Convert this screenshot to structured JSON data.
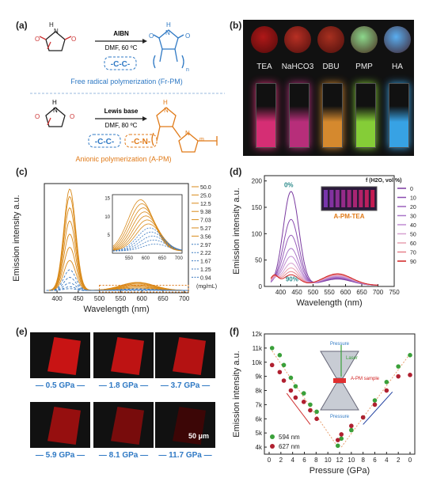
{
  "panel_labels": {
    "a": "(a)",
    "b": "(b)",
    "c": "(c)",
    "d": "(d)",
    "e": "(e)",
    "f": "(f)"
  },
  "panel_a": {
    "top_reagent": "AIBN",
    "top_conditions": "DMF, 60 ºC",
    "top_bond": "-C-C-",
    "top_caption": "Free radical polymerization (Fr-PM)",
    "bottom_reagent": "Lewis base",
    "bottom_conditions": "DMF, 80 ºC",
    "bottom_bond1": "-C-C-",
    "bottom_bond2": "-C-N-",
    "bottom_caption": "Anionic polymerization (A-PM)",
    "subscript_n": "n",
    "subscript_m": "m"
  },
  "panel_b": {
    "base_labels": [
      "TEA",
      "NaHCO3",
      "DBU",
      "PMP",
      "HA"
    ],
    "powder_colors": [
      "#b01818",
      "#b83024",
      "#a83020",
      "#8cd88c",
      "#5aaef0"
    ],
    "vial_colors": [
      "#e0307a",
      "#c03080",
      "#e09030",
      "#8cd83a",
      "#3aaaf0"
    ]
  },
  "chart_data": [
    {
      "type": "line",
      "panel": "c",
      "xlabel": "Wavelength (nm)",
      "ylabel": "Emission intensity a.u.",
      "xlim": [
        370,
        710
      ],
      "xticks": [
        400,
        450,
        500,
        550,
        600,
        650,
        700
      ],
      "legend_title": "",
      "legend_unit": "(mg/mL)",
      "series": [
        {
          "name": "50.0",
          "peak": 430,
          "height": 270,
          "color": "#d98a1a",
          "dash": false
        },
        {
          "name": "25.0",
          "peak": 430,
          "height": 250,
          "color": "#d98a1a",
          "dash": false
        },
        {
          "name": "12.5",
          "peak": 430,
          "height": 220,
          "color": "#d98a1a",
          "dash": false
        },
        {
          "name": "9.38",
          "peak": 430,
          "height": 185,
          "color": "#d98a1a",
          "dash": false
        },
        {
          "name": "7.03",
          "peak": 430,
          "height": 150,
          "color": "#d98a1a",
          "dash": false
        },
        {
          "name": "5.27",
          "peak": 430,
          "height": 115,
          "color": "#d98a1a",
          "dash": false
        },
        {
          "name": "3.56",
          "peak": 430,
          "height": 80,
          "color": "#d98a1a",
          "dash": false
        },
        {
          "name": "2.97",
          "peak": 430,
          "height": 55,
          "color": "#3c7ac0",
          "dash": true
        },
        {
          "name": "2.22",
          "peak": 430,
          "height": 35,
          "color": "#3c7ac0",
          "dash": true
        },
        {
          "name": "1.67",
          "peak": 430,
          "height": 20,
          "color": "#3c7ac0",
          "dash": true
        },
        {
          "name": "1.25",
          "peak": 430,
          "height": 10,
          "color": "#3c7ac0",
          "dash": true
        },
        {
          "name": "0.94",
          "peak": 430,
          "height": 5,
          "color": "#3c7ac0",
          "dash": true
        }
      ],
      "inset": {
        "xlim": [
          500,
          710
        ],
        "ylim": [
          0,
          16
        ],
        "xticks": [
          550,
          600,
          650,
          700
        ],
        "yticks": [
          5,
          10,
          15
        ]
      }
    },
    {
      "type": "line",
      "panel": "d",
      "xlabel": "Wavelength (nm)",
      "ylabel": "Emission intensity a.u.",
      "xlim": [
        350,
        750
      ],
      "ylim": [
        0,
        210
      ],
      "xticks": [
        400,
        450,
        500,
        550,
        600,
        650,
        700,
        750
      ],
      "yticks": [
        0,
        50,
        100,
        150,
        200
      ],
      "legend_title": "f (H2O, vol %)",
      "annotations": [
        "0%",
        "90%"
      ],
      "inset_label": "A-PM-TEA",
      "series": [
        {
          "name": "0",
          "peak": 178,
          "color": "#7a3aa0"
        },
        {
          "name": "10",
          "peak": 125,
          "color": "#8a4cb0"
        },
        {
          "name": "20",
          "peak": 95,
          "color": "#9a60bc"
        },
        {
          "name": "30",
          "peak": 70,
          "color": "#aa76c8"
        },
        {
          "name": "40",
          "peak": 55,
          "color": "#c08ad2"
        },
        {
          "name": "50",
          "peak": 42,
          "color": "#d6a0d0"
        },
        {
          "name": "60",
          "peak": 33,
          "color": "#e8a0b0"
        },
        {
          "name": "70",
          "peak": 26,
          "color": "#e6808a"
        },
        {
          "name": "90",
          "peak": 20,
          "color": "#d02020"
        }
      ]
    },
    {
      "type": "scatter",
      "panel": "f",
      "xlabel": "Pressure (GPa)",
      "ylabel": "Emission intensity a.u.",
      "ylim": [
        3500,
        12000
      ],
      "yticks": [
        4000,
        5000,
        6000,
        7000,
        8000,
        9000,
        10000,
        11000,
        12000
      ],
      "ytick_labels": [
        "4k",
        "5k",
        "6k",
        "7k",
        "8k",
        "9k",
        "10k",
        "11k",
        "12k"
      ],
      "xtick_labels": [
        "0",
        "2",
        "4",
        "6",
        "8",
        "10",
        "12",
        "10",
        "8",
        "6",
        "4",
        "2",
        "0"
      ],
      "inset_labels": {
        "pressure_top": "Pressure",
        "laser": "Laser",
        "sample": "A-PM sample",
        "pressure_bottom": "Pressure"
      },
      "series": [
        {
          "name": "594 nm",
          "color": "#3aa03a",
          "compression": [
            [
              0.5,
              11000
            ],
            [
              1.8,
              10500
            ],
            [
              2.5,
              9800
            ],
            [
              3.7,
              8900
            ],
            [
              4.5,
              8300
            ],
            [
              5.9,
              7800
            ],
            [
              7,
              7000
            ],
            [
              8.1,
              6500
            ],
            [
              11.7,
              4100
            ]
          ],
          "decompression": [
            [
              11.7,
              4600
            ],
            [
              10,
              5200
            ],
            [
              8,
              6100
            ],
            [
              6,
              7300
            ],
            [
              4,
              8600
            ],
            [
              2,
              9700
            ],
            [
              0,
              10500
            ]
          ]
        },
        {
          "name": "627 nm",
          "color": "#b02030",
          "compression": [
            [
              0.5,
              9800
            ],
            [
              1.8,
              9300
            ],
            [
              2.5,
              8700
            ],
            [
              3.7,
              8000
            ],
            [
              4.5,
              7500
            ],
            [
              5.9,
              7200
            ],
            [
              7,
              6600
            ],
            [
              8.1,
              6000
            ],
            [
              11.7,
              4500
            ]
          ],
          "decompression": [
            [
              11.7,
              4900
            ],
            [
              10,
              5500
            ],
            [
              8,
              6100
            ],
            [
              6,
              7000
            ],
            [
              4,
              8000
            ],
            [
              2,
              9000
            ],
            [
              0,
              9100
            ]
          ]
        }
      ]
    }
  ],
  "panel_e": {
    "pressures_row1": [
      "0.5 GPa",
      "1.8 GPa",
      "3.7 GPa"
    ],
    "pressures_row2": [
      "5.9 GPa",
      "8.1 GPa",
      "11.7 GPa"
    ],
    "brightness": [
      1.0,
      0.95,
      0.9,
      0.75,
      0.6,
      0.3
    ],
    "scale_bar": "50 μm"
  }
}
